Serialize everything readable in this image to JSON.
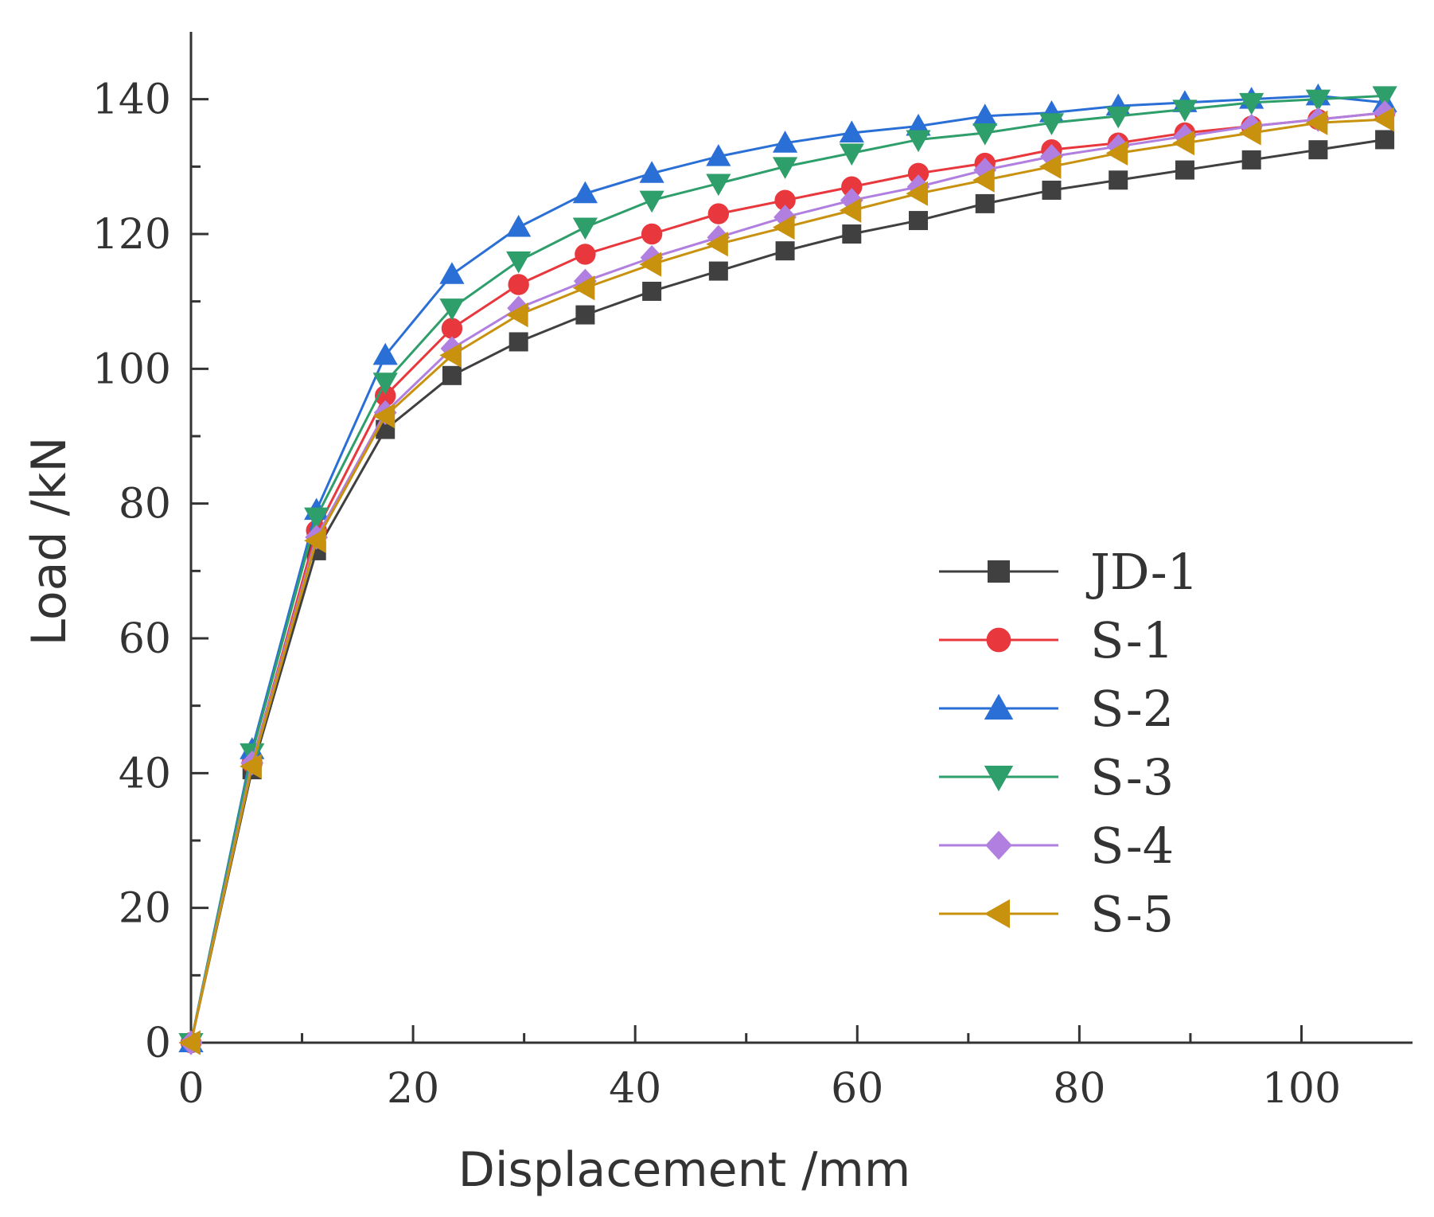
{
  "chart_data": {
    "type": "line",
    "title": "",
    "xlabel": "Displacement /mm",
    "ylabel": "Load /kN",
    "xlim": [
      0,
      110
    ],
    "ylim": [
      0,
      150
    ],
    "xticks": [
      0,
      20,
      40,
      60,
      80,
      100
    ],
    "yticks": [
      0,
      20,
      40,
      60,
      80,
      100,
      120,
      140
    ],
    "xtick_labels": [
      "0",
      "20",
      "40",
      "60",
      "80",
      "100"
    ],
    "ytick_labels": [
      "0",
      "20",
      "40",
      "60",
      "80",
      "100",
      "120",
      "140"
    ],
    "grid": false,
    "legend_position": "bottom-right",
    "x": [
      0,
      5.5,
      11.3,
      17.5,
      23.5,
      29.5,
      35.5,
      41.5,
      47.5,
      53.5,
      59.5,
      65.5,
      71.5,
      77.5,
      83.5,
      89.5,
      95.5,
      101.5,
      107.5
    ],
    "series": [
      {
        "name": "JD-1",
        "color": "#404040",
        "marker": "square",
        "values": [
          0,
          40.5,
          73,
          91,
          99,
          104,
          108,
          111.5,
          114.5,
          117.5,
          120,
          122,
          124.5,
          126.5,
          128,
          129.5,
          131,
          132.5,
          134
        ]
      },
      {
        "name": "S-1",
        "color": "#e8383d",
        "marker": "circle",
        "values": [
          0,
          41.5,
          76,
          96,
          106,
          112.5,
          117,
          120,
          123,
          125,
          127,
          129,
          130.5,
          132.5,
          133.5,
          135,
          136,
          137,
          138
        ]
      },
      {
        "name": "S-2",
        "color": "#2a6fd6",
        "marker": "triangle-up",
        "values": [
          0,
          43.5,
          79,
          102,
          114,
          121,
          126,
          129,
          131.5,
          133.5,
          135,
          136,
          137.5,
          138,
          139,
          139.5,
          140,
          140.5,
          139.5
        ]
      },
      {
        "name": "S-3",
        "color": "#2e9e6b",
        "marker": "triangle-down",
        "values": [
          0,
          43,
          78,
          98,
          109,
          116,
          121,
          125,
          127.5,
          130,
          132,
          134,
          135,
          136.5,
          137.5,
          138.5,
          139.5,
          140,
          140.5
        ]
      },
      {
        "name": "S-4",
        "color": "#b07fe0",
        "marker": "diamond",
        "values": [
          0,
          41.5,
          75,
          93.5,
          103,
          109,
          113,
          116.5,
          119.5,
          122.5,
          125,
          127,
          129.5,
          131.5,
          133,
          134.5,
          136,
          137,
          138
        ]
      },
      {
        "name": "S-5",
        "color": "#c8920e",
        "marker": "triangle-left",
        "values": [
          0,
          41,
          74.5,
          93,
          102,
          108,
          112,
          115.5,
          118.5,
          121,
          123.5,
          126,
          128,
          130,
          132,
          133.5,
          135,
          136.5,
          137
        ]
      }
    ]
  }
}
